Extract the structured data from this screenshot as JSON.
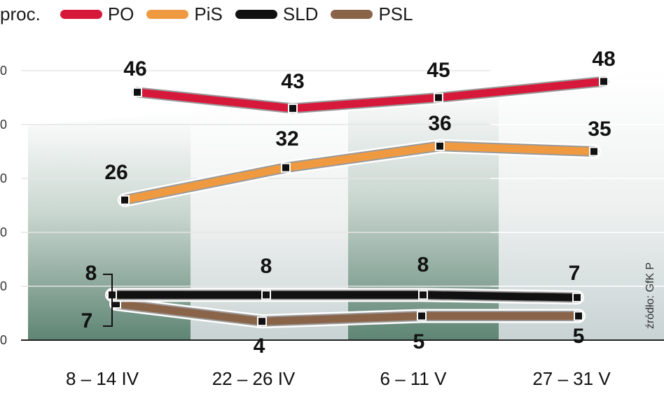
{
  "unit_label": "proc.",
  "source": "źródło: GfK P",
  "chart_data": {
    "type": "line",
    "categories": [
      "8 – 14 IV",
      "22 – 26 IV",
      "6 – 11 V",
      "27 – 31 V"
    ],
    "series": [
      {
        "name": "PO",
        "values": [
          46,
          43,
          45,
          48
        ],
        "color": "#d6193a"
      },
      {
        "name": "PiS",
        "values": [
          26,
          32,
          36,
          35
        ],
        "color": "#ef9a40"
      },
      {
        "name": "SLD",
        "values": [
          8,
          8,
          8,
          7
        ],
        "color": "#111111"
      },
      {
        "name": "PSL",
        "values": [
          7,
          4,
          5,
          5
        ],
        "color": "#8a6449"
      }
    ],
    "y_ticks": [
      "0",
      "0",
      "0",
      "0",
      "0",
      "0"
    ],
    "ylim": [
      0,
      50
    ],
    "grid": true,
    "legend": "top"
  }
}
